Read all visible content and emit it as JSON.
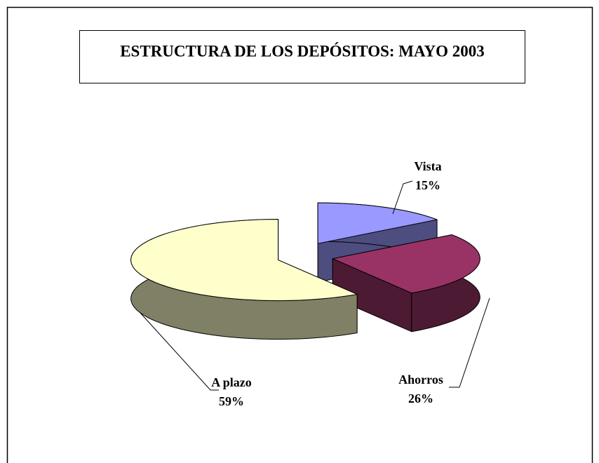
{
  "chart_data": {
    "type": "pie",
    "title": "ESTRUCTURA DE LOS DEPÓSITOS: MAYO 2003",
    "categories": [
      "Vista",
      "Ahorros",
      "A plazo"
    ],
    "values": [
      15,
      26,
      59
    ],
    "value_labels": [
      "15%",
      "26%",
      "59%"
    ],
    "colors": [
      "#9999ff",
      "#993366",
      "#ffffcc"
    ]
  }
}
